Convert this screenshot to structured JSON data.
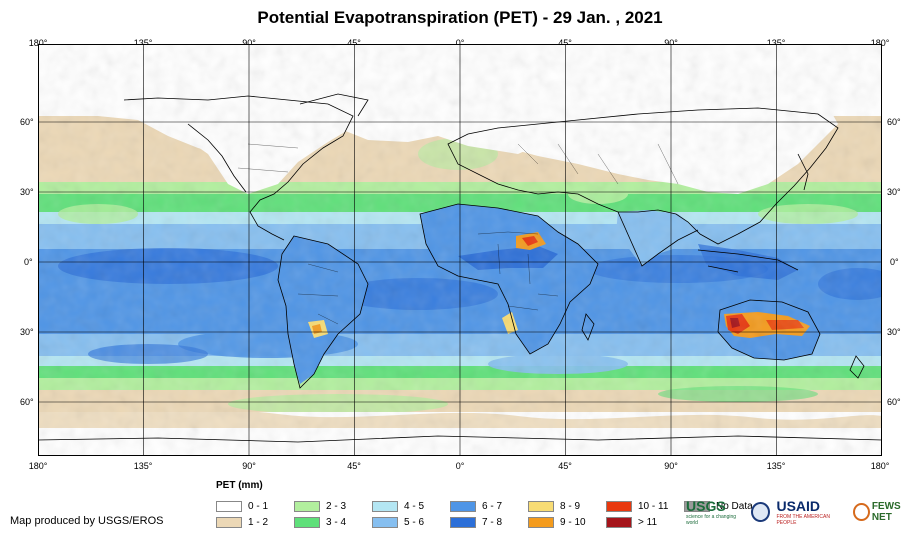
{
  "title": "Potential Evapotranspiration (PET) - 29 Jan. , 2021",
  "lon_labels": [
    "180°",
    "135°",
    "90°",
    "45°",
    "0°",
    "45°",
    "90°",
    "135°",
    "180°"
  ],
  "lat_labels": [
    "60°",
    "30°",
    "0°",
    "30°",
    "60°"
  ],
  "legend": {
    "title": "PET (mm)",
    "items": [
      {
        "label": "0 - 1",
        "color": "#ffffff"
      },
      {
        "label": "1 - 2",
        "color": "#ecd8b6"
      },
      {
        "label": "2 - 3",
        "color": "#b2ef9e"
      },
      {
        "label": "3 - 4",
        "color": "#5fe07a"
      },
      {
        "label": "4 - 5",
        "color": "#b4e6f3"
      },
      {
        "label": "5 - 6",
        "color": "#86bff0"
      },
      {
        "label": "6 - 7",
        "color": "#4f95e6"
      },
      {
        "label": "7 - 8",
        "color": "#2c6fd8"
      },
      {
        "label": "8 - 9",
        "color": "#f8dc74"
      },
      {
        "label": "9 - 10",
        "color": "#f49b1c"
      },
      {
        "label": "10 - 11",
        "color": "#e8380e"
      },
      {
        "label": "> 11",
        "color": "#a5141a"
      },
      {
        "label": "No Data",
        "color": "#9a9a9a"
      }
    ]
  },
  "credit": "Map produced by USGS/EROS",
  "logos": {
    "usgs": "USGS",
    "usgs_tagline": "science for a changing world",
    "usaid": "USAID",
    "usaid_tagline": "FROM THE AMERICAN PEOPLE",
    "fews": "FEWS NET"
  }
}
